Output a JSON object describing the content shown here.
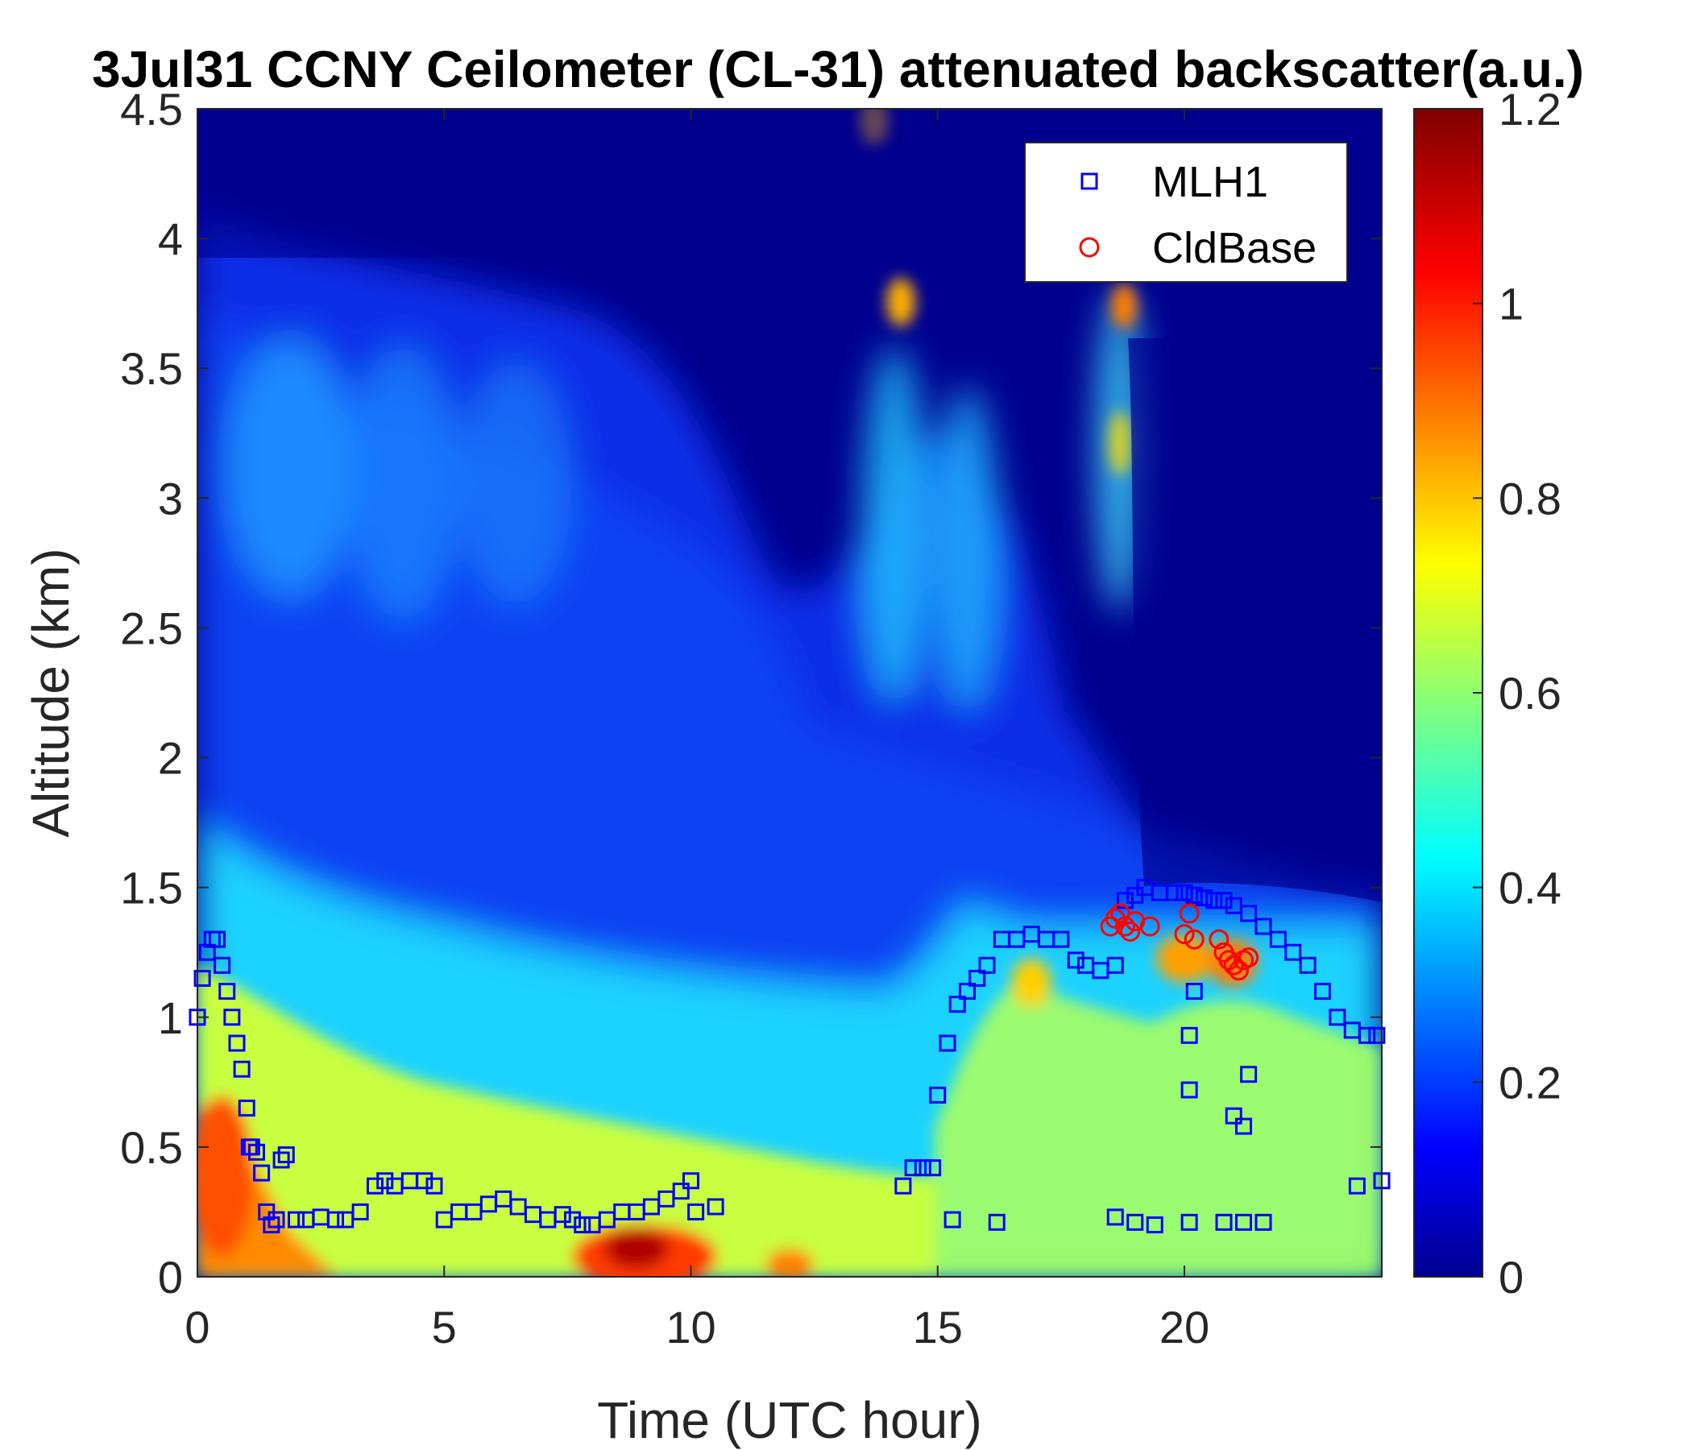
{
  "chart_data": {
    "type": "heatmap",
    "title": "3Jul31 CCNY Ceilometer (CL-31) attenuated backscatter(a.u.)",
    "xlabel": "Time (UTC hour)",
    "ylabel": "Altitude (km)",
    "xlim": [
      0,
      24
    ],
    "ylim": [
      0,
      4.5
    ],
    "xticks": [
      0,
      5,
      10,
      15,
      20
    ],
    "xtick_labels": [
      "0",
      "5",
      "10",
      "15",
      "20"
    ],
    "yticks": [
      0,
      0.5,
      1,
      1.5,
      2,
      2.5,
      3,
      3.5,
      4,
      4.5
    ],
    "ytick_labels": [
      "0",
      "0.5",
      "1",
      "1.5",
      "2",
      "2.5",
      "3",
      "3.5",
      "4",
      "4.5"
    ],
    "colorbar": {
      "colormap": "jet",
      "range": [
        0,
        1.2
      ],
      "ticks": [
        0,
        0.2,
        0.4,
        0.6,
        0.8,
        1,
        1.2
      ],
      "tick_labels": [
        "0",
        "0.2",
        "0.4",
        "0.6",
        "0.8",
        "1",
        "1.2"
      ]
    },
    "legend": {
      "placement": "top-right",
      "entries": [
        {
          "label": "MLH1",
          "marker": "square",
          "color": "#0000ff"
        },
        {
          "label": "CldBase",
          "marker": "circle",
          "color": "#ff0000"
        }
      ]
    },
    "series": [
      {
        "name": "MLH1",
        "marker": "square",
        "color": "#0000ff",
        "x": [
          0.0,
          0.1,
          0.2,
          0.3,
          0.4,
          0.5,
          0.6,
          0.7,
          0.8,
          0.9,
          1.0,
          1.05,
          1.1,
          1.2,
          1.3,
          1.4,
          1.5,
          1.6,
          1.7,
          1.8,
          2.0,
          2.2,
          2.5,
          2.8,
          3.0,
          3.3,
          3.6,
          3.8,
          4.0,
          4.3,
          4.6,
          4.8,
          5.0,
          5.3,
          5.6,
          5.9,
          6.2,
          6.5,
          6.8,
          7.1,
          7.4,
          7.6,
          7.8,
          8.0,
          8.3,
          8.6,
          8.9,
          9.2,
          9.5,
          9.8,
          10.0,
          10.1,
          10.5,
          14.3,
          14.5,
          14.7,
          14.9,
          15.0,
          15.2,
          15.4,
          15.6,
          15.8,
          16.0,
          16.3,
          16.6,
          16.9,
          17.2,
          17.5,
          17.8,
          18.0,
          18.3,
          18.6,
          18.8,
          19.0,
          19.2,
          19.5,
          19.8,
          20.0,
          20.2,
          20.4,
          20.6,
          20.8,
          21.0,
          21.3,
          21.6,
          21.9,
          22.2,
          22.5,
          22.8,
          23.1,
          23.4,
          23.7,
          23.9,
          15.3,
          16.2,
          18.6,
          19.0,
          19.4,
          20.1,
          20.8,
          21.2,
          21.6,
          20.1,
          20.2,
          20.1,
          21.0,
          21.3,
          21.2,
          23.5,
          24.0
        ],
        "y": [
          1.0,
          1.15,
          1.25,
          1.3,
          1.3,
          1.2,
          1.1,
          1.0,
          0.9,
          0.8,
          0.65,
          0.5,
          0.5,
          0.48,
          0.4,
          0.25,
          0.2,
          0.22,
          0.45,
          0.47,
          0.22,
          0.22,
          0.23,
          0.22,
          0.22,
          0.25,
          0.35,
          0.37,
          0.35,
          0.37,
          0.37,
          0.35,
          0.22,
          0.25,
          0.25,
          0.28,
          0.3,
          0.27,
          0.24,
          0.22,
          0.24,
          0.22,
          0.2,
          0.2,
          0.22,
          0.25,
          0.25,
          0.27,
          0.3,
          0.33,
          0.37,
          0.25,
          0.27,
          0.35,
          0.42,
          0.42,
          0.42,
          0.7,
          0.9,
          1.05,
          1.1,
          1.15,
          1.2,
          1.3,
          1.3,
          1.32,
          1.3,
          1.3,
          1.22,
          1.2,
          1.18,
          1.2,
          1.45,
          1.47,
          1.5,
          1.48,
          1.48,
          1.48,
          1.47,
          1.46,
          1.45,
          1.45,
          1.43,
          1.4,
          1.35,
          1.3,
          1.25,
          1.2,
          1.1,
          1.0,
          0.95,
          0.93,
          0.93,
          0.22,
          0.21,
          0.23,
          0.21,
          0.2,
          0.21,
          0.21,
          0.21,
          0.21,
          0.93,
          1.1,
          0.72,
          0.62,
          0.78,
          0.58,
          0.35,
          0.37
        ]
      },
      {
        "name": "CldBase",
        "marker": "circle",
        "color": "#ff0000",
        "x": [
          18.5,
          18.6,
          18.7,
          18.8,
          18.9,
          19.0,
          19.3,
          20.0,
          20.1,
          20.2,
          20.7,
          20.8,
          20.9,
          21.0,
          21.1,
          21.2,
          21.3
        ],
        "y": [
          1.35,
          1.38,
          1.4,
          1.35,
          1.33,
          1.37,
          1.35,
          1.32,
          1.4,
          1.3,
          1.3,
          1.25,
          1.22,
          1.2,
          1.18,
          1.22,
          1.23
        ]
      }
    ]
  }
}
